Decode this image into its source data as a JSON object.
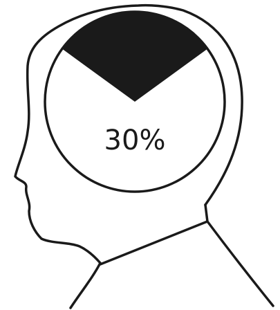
{
  "chart_data": {
    "type": "pie",
    "values": [
      30
    ],
    "value_labels": [
      "30%"
    ],
    "color": "#1a1a1a"
  }
}
